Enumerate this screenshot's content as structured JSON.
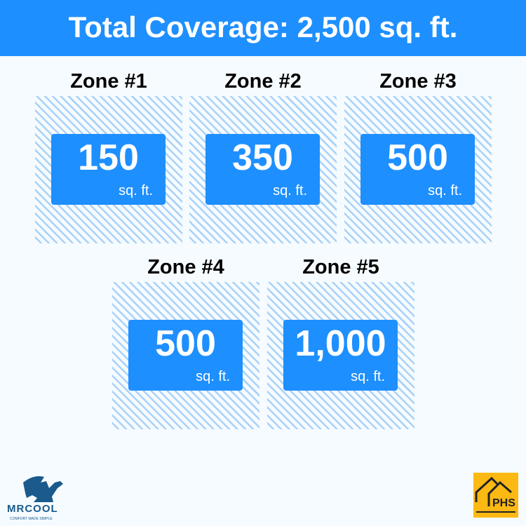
{
  "header": {
    "title": "Total Coverage: 2,500 sq. ft."
  },
  "zones": [
    {
      "title": "Zone #1",
      "value": "150",
      "unit": "sq. ft."
    },
    {
      "title": "Zone #2",
      "value": "350",
      "unit": "sq. ft."
    },
    {
      "title": "Zone #3",
      "value": "500",
      "unit": "sq. ft."
    },
    {
      "title": "Zone #4",
      "value": "500",
      "unit": "sq. ft."
    },
    {
      "title": "Zone #5",
      "value": "1,000",
      "unit": "sq. ft."
    }
  ],
  "logos": {
    "left": "MRCOOL",
    "left_tagline": "COMFORT MADE SIMPLE",
    "right": "PHS"
  },
  "colors": {
    "accent": "#1e8fff",
    "hatch": "#a9d2f7",
    "phs": "#fdb913",
    "mrcool": "#1a5a8c"
  }
}
